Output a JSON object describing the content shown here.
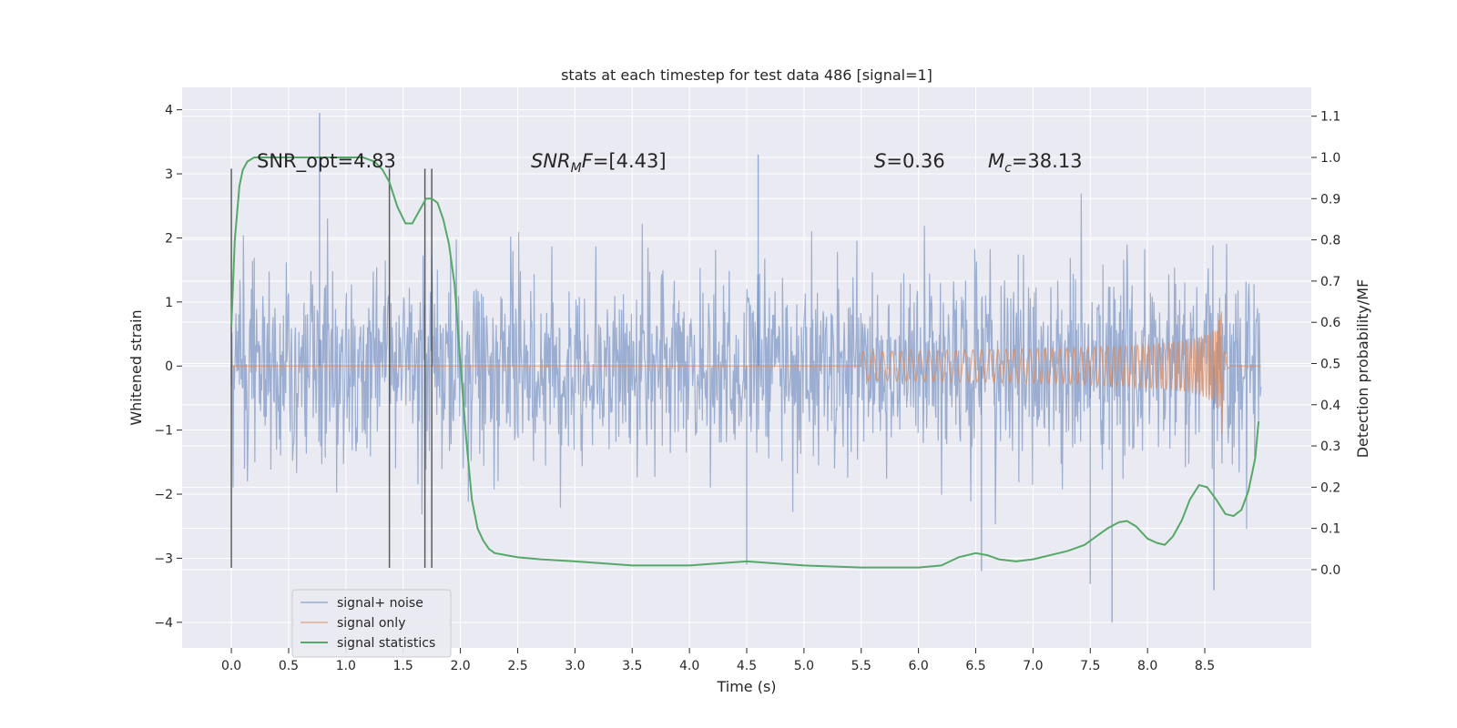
{
  "chart_data": {
    "type": "line",
    "title": "stats at each timestep for test data 486 [signal=1]",
    "xlabel": "Time (s)",
    "ylabel": "Whitened strain",
    "ylabel_right": "Detection probability/MF",
    "xlim": [
      -0.43,
      9.43
    ],
    "ylim": [
      -4.4,
      4.35
    ],
    "ylim_right": [
      -0.19,
      1.17
    ],
    "x_ticks": [
      0.0,
      0.5,
      1.0,
      1.5,
      2.0,
      2.5,
      3.0,
      3.5,
      4.0,
      4.5,
      5.0,
      5.5,
      6.0,
      6.5,
      7.0,
      7.5,
      8.0,
      8.5
    ],
    "x_tick_labels": [
      "0.0",
      "0.5",
      "1.0",
      "1.5",
      "2.0",
      "2.5",
      "3.0",
      "3.5",
      "4.0",
      "4.5",
      "5.0",
      "5.5",
      "6.0",
      "6.5",
      "7.0",
      "7.5",
      "8.0",
      "8.5"
    ],
    "y_ticks": [
      -4,
      -3,
      -2,
      -1,
      0,
      1,
      2,
      3,
      4
    ],
    "y_tick_labels": [
      "−4",
      "−3",
      "−2",
      "−1",
      "0",
      "1",
      "2",
      "3",
      "4"
    ],
    "y_right_ticks": [
      0.0,
      0.1,
      0.2,
      0.3,
      0.4,
      0.5,
      0.6,
      0.7,
      0.8,
      0.9,
      1.0,
      1.1
    ],
    "y_right_tick_labels": [
      "0.0",
      "0.1",
      "0.2",
      "0.3",
      "0.4",
      "0.5",
      "0.6",
      "0.7",
      "0.8",
      "0.9",
      "1.0",
      "1.1"
    ],
    "grid": true,
    "legend_position": "lower-left",
    "annotations": [
      {
        "text": "SNR_opt=4.83",
        "x": 0.2,
        "y": 3.1
      },
      {
        "text": "SNR_MF=[4.43]",
        "x": 2.6,
        "y": 3.1
      },
      {
        "text": "S=0.36",
        "x": 5.6,
        "y": 3.1
      },
      {
        "text": "M_c=38.13",
        "x": 6.6,
        "y": 3.1
      }
    ],
    "vertical_markers": [
      0.0,
      1.38,
      1.69,
      1.75
    ],
    "vertical_marker_range": [
      -3.15,
      3.08
    ],
    "series": [
      {
        "name": "signal+ noise",
        "color": "#4c72b0",
        "kind": "noise",
        "x_range": [
          0.0,
          8.99
        ],
        "typical_amplitude": 0.9,
        "extreme_values": [
          {
            "x": 0.77,
            "y": 3.95
          },
          {
            "x": 4.6,
            "y": 3.3
          },
          {
            "x": 7.69,
            "y": -4.0
          },
          {
            "x": 8.58,
            "y": -3.5
          },
          {
            "x": 7.5,
            "y": -3.4
          },
          {
            "x": 6.55,
            "y": -3.2
          },
          {
            "x": 4.5,
            "y": -3.1
          }
        ]
      },
      {
        "name": "signal only",
        "color": "#dd8452",
        "kind": "chirp",
        "start_x": 5.5,
        "peak_x": 8.65,
        "peak_amplitude": 1.1,
        "end_x": 8.99
      },
      {
        "name": "signal statistics",
        "color": "#55a868",
        "axis": "right",
        "x": [
          0.0,
          0.03,
          0.07,
          0.1,
          0.14,
          0.2,
          0.3,
          0.5,
          0.8,
          1.0,
          1.15,
          1.25,
          1.32,
          1.38,
          1.45,
          1.52,
          1.58,
          1.64,
          1.7,
          1.75,
          1.8,
          1.85,
          1.9,
          1.95,
          2.0,
          2.05,
          2.1,
          2.15,
          2.2,
          2.25,
          2.3,
          2.4,
          2.5,
          2.7,
          3.0,
          3.5,
          4.0,
          4.5,
          5.0,
          5.5,
          6.0,
          6.2,
          6.35,
          6.5,
          6.6,
          6.7,
          6.85,
          7.0,
          7.15,
          7.3,
          7.45,
          7.55,
          7.65,
          7.75,
          7.82,
          7.9,
          8.0,
          8.08,
          8.15,
          8.22,
          8.3,
          8.37,
          8.45,
          8.52,
          8.6,
          8.68,
          8.75,
          8.82,
          8.88,
          8.94,
          8.97
        ],
        "values": [
          0.59,
          0.8,
          0.93,
          0.97,
          0.99,
          1.0,
          1.0,
          1.0,
          1.0,
          1.0,
          1.0,
          0.99,
          0.97,
          0.94,
          0.88,
          0.84,
          0.84,
          0.87,
          0.9,
          0.9,
          0.89,
          0.85,
          0.79,
          0.69,
          0.5,
          0.32,
          0.17,
          0.1,
          0.07,
          0.05,
          0.04,
          0.035,
          0.03,
          0.025,
          0.02,
          0.01,
          0.01,
          0.02,
          0.01,
          0.005,
          0.005,
          0.01,
          0.03,
          0.04,
          0.035,
          0.025,
          0.02,
          0.025,
          0.035,
          0.045,
          0.06,
          0.08,
          0.1,
          0.115,
          0.118,
          0.105,
          0.075,
          0.065,
          0.06,
          0.08,
          0.12,
          0.17,
          0.205,
          0.2,
          0.17,
          0.135,
          0.13,
          0.145,
          0.19,
          0.27,
          0.36
        ]
      }
    ]
  }
}
